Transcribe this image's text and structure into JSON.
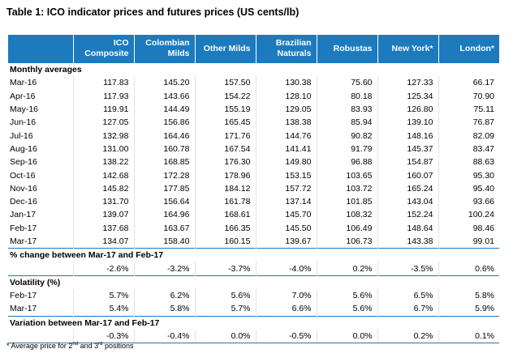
{
  "title": "Table 1: ICO indicator prices and futures prices (US cents/lb)",
  "columns": [
    "",
    "ICO\nComposite",
    "Colombian\nMilds",
    "Other Milds",
    "Brazilian\nNaturals",
    "Robustas",
    "New York*",
    "London*"
  ],
  "sections": {
    "monthly": {
      "label": "Monthly averages",
      "rows": [
        [
          "Mar-16",
          "117.83",
          "145.20",
          "157.50",
          "130.38",
          "75.60",
          "127.33",
          "66.17"
        ],
        [
          "Apr-16",
          "117.93",
          "143.66",
          "154.22",
          "128.10",
          "80.18",
          "125.34",
          "70.90"
        ],
        [
          "May-16",
          "119.91",
          "144.49",
          "155.19",
          "129.05",
          "83.93",
          "126.80",
          "75.11"
        ],
        [
          "Jun-16",
          "127.05",
          "156.86",
          "165.45",
          "138.38",
          "85.94",
          "139.10",
          "76.87"
        ],
        [
          "Jul-16",
          "132.98",
          "164.46",
          "171.76",
          "144.76",
          "90.82",
          "148.16",
          "82.09"
        ],
        [
          "Aug-16",
          "131.00",
          "160.78",
          "167.54",
          "141.41",
          "91.79",
          "145.37",
          "83.47"
        ],
        [
          "Sep-16",
          "138.22",
          "168.85",
          "176.30",
          "149.80",
          "96.88",
          "154.87",
          "88.63"
        ],
        [
          "Oct-16",
          "142.68",
          "172.28",
          "178.96",
          "153.15",
          "103.65",
          "160.07",
          "95.30"
        ],
        [
          "Nov-16",
          "145.82",
          "177.85",
          "184.12",
          "157.72",
          "103.72",
          "165.24",
          "95.40"
        ],
        [
          "Dec-16",
          "131.70",
          "156.64",
          "161.78",
          "137.14",
          "101.85",
          "143.04",
          "93.66"
        ],
        [
          "Jan-17",
          "139.07",
          "164.96",
          "168.61",
          "145.70",
          "108.32",
          "152.24",
          "100.24"
        ],
        [
          "Feb-17",
          "137.68",
          "163.67",
          "166.35",
          "145.50",
          "106.49",
          "148.64",
          "98.46"
        ],
        [
          "Mar-17",
          "134.07",
          "158.40",
          "160.15",
          "139.67",
          "106.73",
          "143.38",
          "99.01"
        ]
      ]
    },
    "change": {
      "label": "% change between Mar-17 and Feb-17",
      "rows": [
        [
          "",
          "-2.6%",
          "-3.2%",
          "-3.7%",
          "-4.0%",
          "0.2%",
          "-3.5%",
          "0.6%"
        ]
      ]
    },
    "volatility": {
      "label": "Volatility (%)",
      "rows": [
        [
          "Feb-17",
          "5.7%",
          "6.2%",
          "5.6%",
          "7.0%",
          "5.6%",
          "6.5%",
          "5.8%"
        ],
        [
          "Mar-17",
          "5.4%",
          "5.8%",
          "5.7%",
          "6.6%",
          "5.6%",
          "6.7%",
          "5.9%"
        ]
      ]
    },
    "variation": {
      "label": "Variation between Mar-17 and Feb-17",
      "rows": [
        [
          "",
          "-0.3%",
          "-0.4%",
          "0.0%",
          "-0.5%",
          "0.0%",
          "0.2%",
          "0.1%"
        ]
      ]
    }
  },
  "footnote": {
    "prefix": "* Average price for 2",
    "sup1": "nd",
    "middle": " and 3",
    "sup2": "rd",
    "suffix": " positions"
  },
  "colors": {
    "header_bg": "#1c7abf",
    "header_text": "#ffffff",
    "rule": "#1c7abf"
  }
}
